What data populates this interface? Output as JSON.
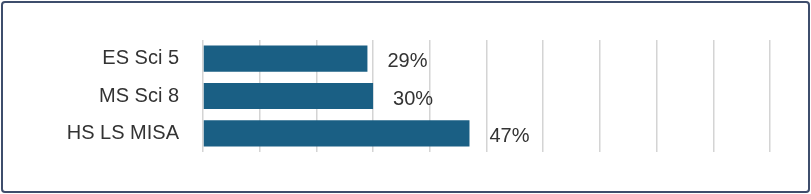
{
  "chart_data": {
    "type": "bar",
    "orientation": "horizontal",
    "categories": [
      "ES Sci 5",
      "MS Sci 8",
      "HS LS MISA"
    ],
    "values": [
      29,
      30,
      47
    ],
    "value_labels": [
      "29%",
      "30%",
      "47%"
    ],
    "color": "#1a5f84",
    "xlim": [
      0,
      100
    ],
    "xticks": [
      0,
      10,
      20,
      30,
      40,
      50,
      60,
      70,
      80,
      90,
      100
    ],
    "grid": true,
    "data_labels": true,
    "tick_labels": "y"
  }
}
